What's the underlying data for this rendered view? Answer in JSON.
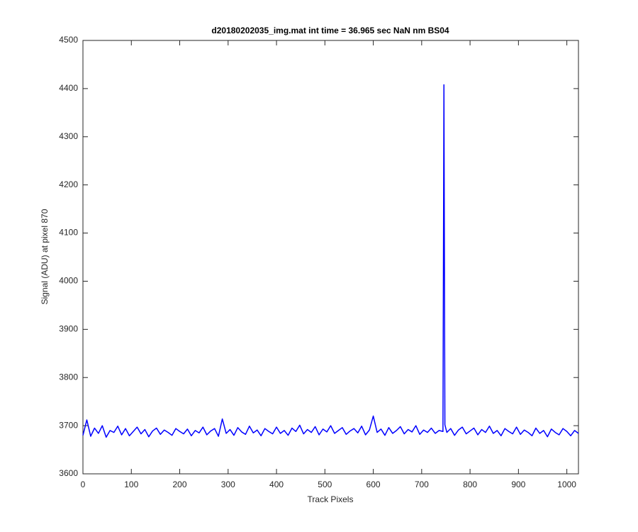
{
  "chart_data": {
    "type": "line",
    "title": "d20180202035_img.mat int time = 36.965 sec  NaN nm BS04",
    "x_label": "Track Pixels",
    "y_label": "Signal (ADU) at pixel 870",
    "xlim": [
      0,
      1024
    ],
    "ylim": [
      3600,
      4500
    ],
    "xticks": [
      0,
      100,
      200,
      300,
      400,
      500,
      600,
      700,
      800,
      900,
      1000
    ],
    "yticks": [
      3600,
      3700,
      3800,
      3900,
      4000,
      4100,
      4200,
      4300,
      4400,
      4500
    ],
    "grid": false,
    "x": [
      0,
      8,
      16,
      24,
      32,
      40,
      48,
      56,
      64,
      72,
      80,
      88,
      96,
      104,
      112,
      120,
      128,
      136,
      144,
      152,
      160,
      168,
      176,
      184,
      192,
      200,
      208,
      216,
      224,
      232,
      240,
      248,
      256,
      264,
      272,
      280,
      288,
      296,
      304,
      312,
      320,
      328,
      336,
      344,
      352,
      360,
      368,
      376,
      384,
      392,
      400,
      408,
      416,
      424,
      432,
      440,
      448,
      456,
      464,
      472,
      480,
      488,
      496,
      504,
      512,
      520,
      528,
      536,
      544,
      552,
      560,
      568,
      576,
      584,
      592,
      600,
      608,
      616,
      624,
      632,
      640,
      648,
      656,
      664,
      672,
      680,
      688,
      696,
      704,
      712,
      720,
      728,
      736,
      744,
      746,
      748,
      752,
      760,
      768,
      776,
      784,
      792,
      800,
      808,
      816,
      824,
      832,
      840,
      848,
      856,
      864,
      872,
      880,
      888,
      896,
      904,
      912,
      920,
      928,
      936,
      944,
      952,
      960,
      968,
      976,
      984,
      992,
      1000,
      1008,
      1016,
      1024
    ],
    "series": [
      {
        "color": "#0000ff",
        "values": [
          3680,
          3712,
          3678,
          3695,
          3684,
          3700,
          3676,
          3690,
          3686,
          3699,
          3681,
          3694,
          3679,
          3688,
          3697,
          3683,
          3692,
          3677,
          3689,
          3695,
          3682,
          3691,
          3686,
          3680,
          3694,
          3688,
          3683,
          3693,
          3679,
          3690,
          3685,
          3697,
          3681,
          3689,
          3694,
          3678,
          3714,
          3684,
          3692,
          3680,
          3696,
          3687,
          3682,
          3699,
          3685,
          3691,
          3679,
          3694,
          3688,
          3683,
          3697,
          3684,
          3690,
          3680,
          3695,
          3688,
          3701,
          3683,
          3692,
          3686,
          3698,
          3681,
          3693,
          3687,
          3700,
          3684,
          3690,
          3696,
          3682,
          3689,
          3694,
          3685,
          3699,
          3681,
          3691,
          3720,
          3686,
          3693,
          3680,
          3696,
          3684,
          3690,
          3698,
          3683,
          3692,
          3687,
          3700,
          3682,
          3691,
          3686,
          3695,
          3684,
          3690,
          3688,
          4408,
          3702,
          3686,
          3694,
          3680,
          3691,
          3697,
          3683,
          3689,
          3695,
          3681,
          3692,
          3686,
          3699,
          3684,
          3690,
          3679,
          3694,
          3688,
          3683,
          3697,
          3682,
          3691,
          3686,
          3679,
          3695,
          3684,
          3690,
          3677,
          3693,
          3686,
          3681,
          3694,
          3688,
          3679,
          3690,
          3684
        ]
      }
    ]
  }
}
